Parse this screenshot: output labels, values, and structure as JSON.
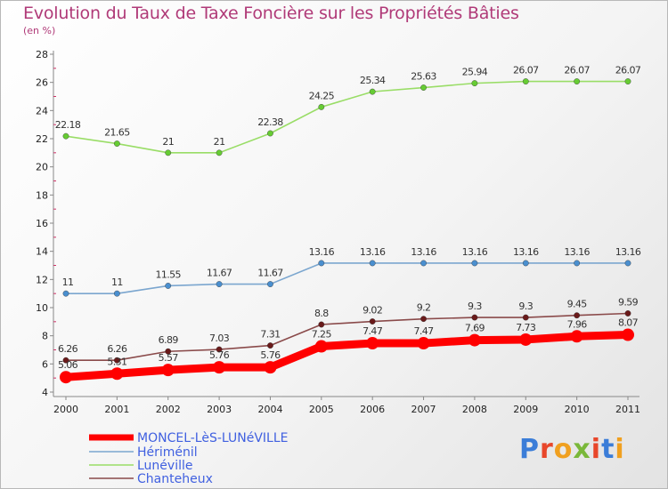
{
  "header": {
    "title": "Evolution du Taux de Taxe Foncière sur les Propriétés Bâties",
    "subtitle": "(en %)"
  },
  "brand": {
    "text": "Proxiti",
    "letter_colors": [
      "#3b7dd8",
      "#e8462a",
      "#f0a020",
      "#7ab83a",
      "#e8462a",
      "#3b7dd8",
      "#f0a020"
    ]
  },
  "chart_data": {
    "type": "line",
    "title": "Evolution du Taux de Taxe Foncière sur les Propriétés Bâties",
    "subtitle": "(en %)",
    "xlabel": "",
    "ylabel": "",
    "categories": [
      "2000",
      "2001",
      "2002",
      "2003",
      "2004",
      "2005",
      "2006",
      "2007",
      "2008",
      "2009",
      "2010",
      "2011"
    ],
    "ylim": [
      4,
      28
    ],
    "yticks": [
      4,
      6,
      8,
      10,
      12,
      14,
      16,
      18,
      20,
      22,
      24,
      26,
      28
    ],
    "grid": false,
    "legend_position": "bottom-left",
    "series": [
      {
        "name": "MONCEL-LèS-LUNéVILLE",
        "values": [
          5.06,
          5.31,
          5.57,
          5.76,
          5.76,
          7.25,
          7.47,
          7.47,
          7.69,
          7.73,
          7.96,
          8.07
        ],
        "labels": [
          "5.06",
          "5.31",
          "5.57",
          "5.76",
          "5.76",
          "7.25",
          "7.47",
          "7.47",
          "7.69",
          "7.73",
          "7.96",
          "8.07"
        ],
        "color": "#ff0000",
        "marker_color": "#ff0000",
        "bold": true
      },
      {
        "name": "Hériménil",
        "values": [
          11,
          11,
          11.55,
          11.67,
          11.67,
          13.16,
          13.16,
          13.16,
          13.16,
          13.16,
          13.16,
          13.16
        ],
        "labels": [
          "11",
          "11",
          "11.55",
          "11.67",
          "11.67",
          "13.16",
          "13.16",
          "13.16",
          "13.16",
          "13.16",
          "13.16",
          "13.16"
        ],
        "color": "#7ba6cf",
        "marker_color": "#4a8fcf",
        "bold": false
      },
      {
        "name": "Lunéville",
        "values": [
          22.18,
          21.65,
          21,
          21,
          22.38,
          24.25,
          25.34,
          25.63,
          25.94,
          26.07,
          26.07,
          26.07
        ],
        "labels": [
          "22.18",
          "21.65",
          "21",
          "21",
          "22.38",
          "24.25",
          "25.34",
          "25.63",
          "25.94",
          "26.07",
          "26.07",
          "26.07"
        ],
        "color": "#99dd66",
        "marker_color": "#66cc33",
        "bold": false
      },
      {
        "name": "Chanteheux",
        "values": [
          6.26,
          6.26,
          6.89,
          7.03,
          7.31,
          8.8,
          9.02,
          9.2,
          9.3,
          9.3,
          9.45,
          9.59
        ],
        "labels": [
          "6.26",
          "6.26",
          "6.89",
          "7.03",
          "7.31",
          "8.8",
          "9.02",
          "9.2",
          "9.3",
          "9.3",
          "9.45",
          "9.59"
        ],
        "color": "#8a4a4a",
        "marker_color": "#6a1a1a",
        "bold": false
      }
    ]
  }
}
